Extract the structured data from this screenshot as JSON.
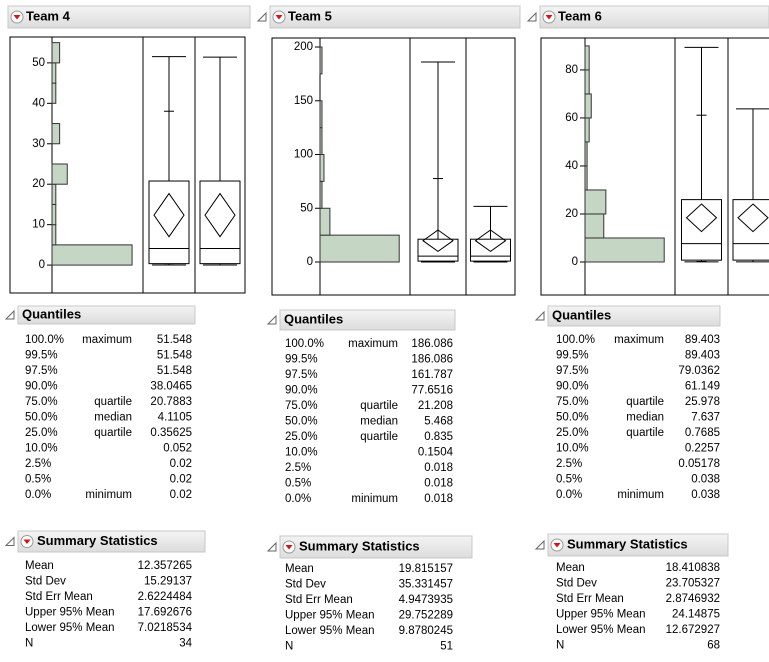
{
  "panels": [
    {
      "title": "Team 4",
      "histogram": {
        "ylim": [
          -6.9,
          56.4
        ],
        "yticks": [
          0,
          10,
          20,
          30,
          40,
          50
        ],
        "bins": [
          0,
          5,
          10,
          15,
          20,
          25,
          30,
          35,
          40,
          45,
          50,
          55
        ],
        "counts": [
          21,
          1,
          1,
          1,
          4,
          0,
          2,
          0,
          1,
          1,
          2
        ]
      },
      "quantiles": {
        "title": "Quantiles",
        "rows": [
          {
            "level": "100.0%",
            "label": "maximum",
            "value": 51.548
          },
          {
            "level": "99.5%",
            "value": 51.548
          },
          {
            "level": "97.5%",
            "value": 51.548
          },
          {
            "level": "90.0%",
            "value": 38.0465
          },
          {
            "level": "75.0%",
            "label": "quartile",
            "value": 20.7883
          },
          {
            "level": "50.0%",
            "label": "median",
            "value": 4.1105
          },
          {
            "level": "25.0%",
            "label": "quartile",
            "value": 0.35625
          },
          {
            "level": "10.0%",
            "value": 0.052
          },
          {
            "level": "2.5%",
            "value": 0.02
          },
          {
            "level": "0.5%",
            "value": 0.02
          },
          {
            "level": "0.0%",
            "label": "minimum",
            "value": 0.02
          }
        ]
      },
      "summary": {
        "title": "Summary Statistics",
        "rows": [
          {
            "label": "Mean",
            "value": 12.357265
          },
          {
            "label": "Std Dev",
            "value": 15.29137
          },
          {
            "label": "Std Err Mean",
            "value": 2.6224484
          },
          {
            "label": "Upper 95% Mean",
            "value": 17.692676
          },
          {
            "label": "Lower 95% Mean",
            "value": 7.0218534
          },
          {
            "label": "N",
            "value": 34
          }
        ]
      }
    },
    {
      "title": "Team 5",
      "histogram": {
        "ylim": [
          -30.7,
          208.4
        ],
        "yticks": [
          0,
          50,
          100,
          150,
          200
        ],
        "bins": [
          0,
          25,
          50,
          75,
          100,
          125,
          150,
          175,
          200
        ],
        "counts": [
          40,
          5,
          1,
          2,
          1,
          1,
          0,
          1
        ]
      },
      "quantiles": {
        "title": "Quantiles",
        "rows": [
          {
            "level": "100.0%",
            "label": "maximum",
            "value": 186.086
          },
          {
            "level": "99.5%",
            "value": 186.086
          },
          {
            "level": "97.5%",
            "value": 161.787
          },
          {
            "level": "90.0%",
            "value": 77.6516
          },
          {
            "level": "75.0%",
            "label": "quartile",
            "value": 21.208
          },
          {
            "level": "50.0%",
            "label": "median",
            "value": 5.468
          },
          {
            "level": "25.0%",
            "label": "quartile",
            "value": 0.835
          },
          {
            "level": "10.0%",
            "value": 0.1504
          },
          {
            "level": "2.5%",
            "value": 0.018
          },
          {
            "level": "0.5%",
            "value": 0.018
          },
          {
            "level": "0.0%",
            "label": "minimum",
            "value": 0.018
          }
        ]
      },
      "summary": {
        "title": "Summary Statistics",
        "rows": [
          {
            "label": "Mean",
            "value": 19.815157
          },
          {
            "label": "Std Dev",
            "value": 35.331457
          },
          {
            "label": "Std Err Mean",
            "value": 4.9473935
          },
          {
            "label": "Upper 95% Mean",
            "value": 29.752289
          },
          {
            "label": "Lower 95% Mean",
            "value": 9.8780245
          },
          {
            "label": "N",
            "value": 51
          }
        ]
      }
    },
    {
      "title": "Team 6",
      "histogram": {
        "ylim": [
          -13.75,
          93.3
        ],
        "yticks": [
          0,
          20,
          40,
          60,
          80
        ],
        "bins": [
          0,
          10,
          20,
          30,
          40,
          50,
          60,
          70,
          80,
          90
        ],
        "counts": [
          38,
          9,
          10,
          1,
          1,
          2,
          3,
          2,
          2
        ]
      },
      "quantiles": {
        "title": "Quantiles",
        "rows": [
          {
            "level": "100.0%",
            "label": "maximum",
            "value": 89.403
          },
          {
            "level": "99.5%",
            "value": 89.403
          },
          {
            "level": "97.5%",
            "value": 79.0362
          },
          {
            "level": "90.0%",
            "value": 61.149
          },
          {
            "level": "75.0%",
            "label": "quartile",
            "value": 25.978
          },
          {
            "level": "50.0%",
            "label": "median",
            "value": 7.637
          },
          {
            "level": "25.0%",
            "label": "quartile",
            "value": 0.7685
          },
          {
            "level": "10.0%",
            "value": 0.2257
          },
          {
            "level": "2.5%",
            "value": 0.05178
          },
          {
            "level": "0.5%",
            "value": 0.038
          },
          {
            "level": "0.0%",
            "label": "minimum",
            "value": 0.038
          }
        ]
      },
      "summary": {
        "title": "Summary Statistics",
        "rows": [
          {
            "label": "Mean",
            "value": 18.410838
          },
          {
            "label": "Std Dev",
            "value": 23.705327
          },
          {
            "label": "Std Err Mean",
            "value": 2.8746932
          },
          {
            "label": "Upper 95% Mean",
            "value": 24.14875
          },
          {
            "label": "Lower 95% Mean",
            "value": 12.672927
          },
          {
            "label": "N",
            "value": 68
          }
        ]
      }
    }
  ]
}
